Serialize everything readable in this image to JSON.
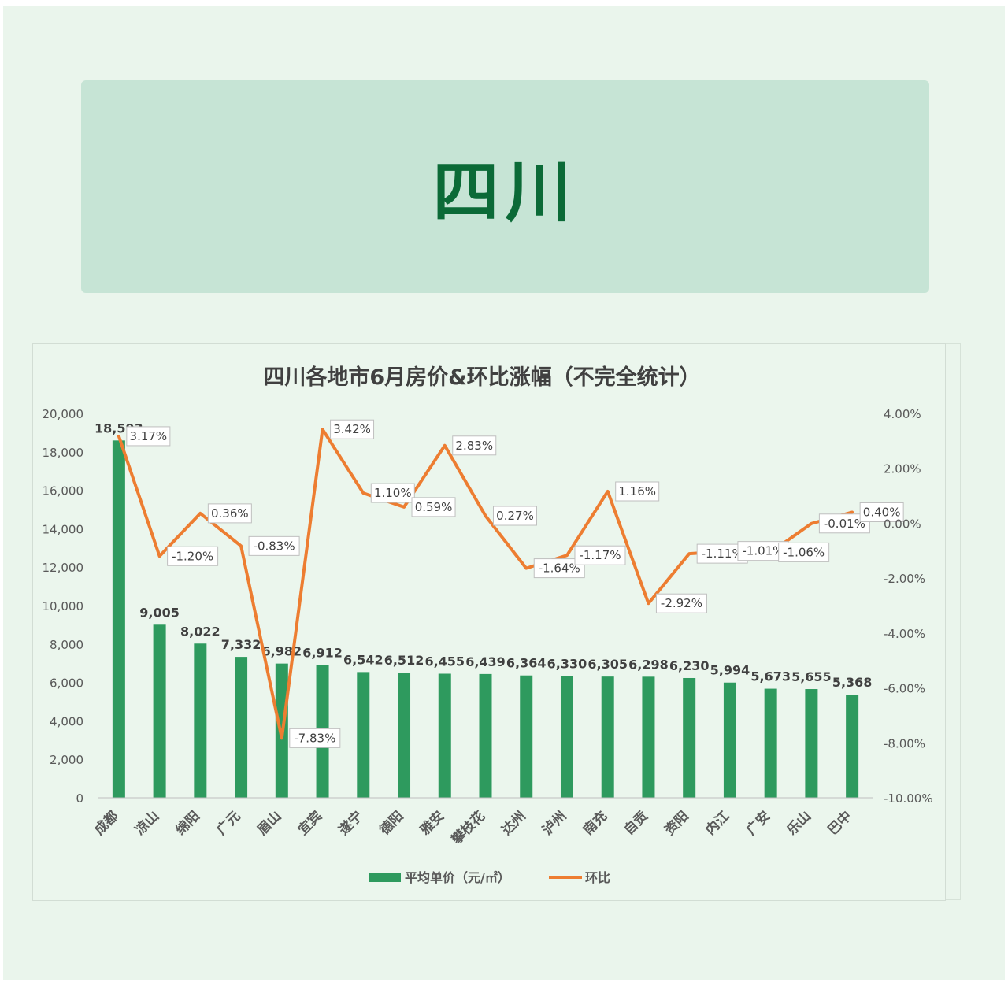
{
  "banner": {
    "title": "四川"
  },
  "chart_data": {
    "type": "bar+line",
    "title": "四川各地市6月房价&环比涨幅（不完全统计）",
    "categories": [
      "成都",
      "凉山",
      "绵阳",
      "广元",
      "眉山",
      "宜宾",
      "遂宁",
      "德阳",
      "雅安",
      "攀枝花",
      "达州",
      "泸州",
      "南充",
      "自贡",
      "资阳",
      "内江",
      "广安",
      "乐山",
      "巴中"
    ],
    "series": [
      {
        "name": "平均单价（元/㎡）",
        "type": "bar",
        "axis": "left",
        "color": "#2e9a5e",
        "values": [
          18593,
          9005,
          8022,
          7332,
          6982,
          6912,
          6542,
          6512,
          6455,
          6439,
          6364,
          6330,
          6305,
          6298,
          6230,
          5994,
          5673,
          5655,
          5368
        ],
        "value_labels": [
          "18,593",
          "9,005",
          "8,022",
          "7,332",
          "6,982",
          "6,912",
          "6,542",
          "6,512",
          "6,455",
          "6,439",
          "6,364",
          "6,330",
          "6,305",
          "6,298",
          "6,230",
          "5,994",
          "5,673",
          "5,655",
          "5,368"
        ]
      },
      {
        "name": "环比",
        "type": "line",
        "axis": "right",
        "color": "#ed7d31",
        "values": [
          3.17,
          -1.2,
          0.36,
          -0.83,
          -7.83,
          3.42,
          1.1,
          0.59,
          2.83,
          0.27,
          -1.64,
          -1.17,
          1.16,
          -2.92,
          -1.11,
          -1.01,
          -1.06,
          -0.01,
          0.4
        ],
        "value_labels": [
          "3.17%",
          "-1.20%",
          "0.36%",
          "-0.83%",
          "-7.83%",
          "3.42%",
          "1.10%",
          "0.59%",
          "2.83%",
          "0.27%",
          "-1.64%",
          "-1.17%",
          "1.16%",
          "-2.92%",
          "-1.11%",
          "-1.01%",
          "-1.06%",
          "-0.01%",
          "0.40%"
        ]
      }
    ],
    "y_left": {
      "range": [
        0,
        20000
      ],
      "ticks": [
        0,
        2000,
        4000,
        6000,
        8000,
        10000,
        12000,
        14000,
        16000,
        18000,
        20000
      ],
      "tick_labels": [
        "0",
        "2,000",
        "4,000",
        "6,000",
        "8,000",
        "10,000",
        "12,000",
        "14,000",
        "16,000",
        "18,000",
        "20,000"
      ]
    },
    "y_right": {
      "range": [
        -10,
        4
      ],
      "ticks": [
        -10,
        -8,
        -6,
        -4,
        -2,
        0,
        2,
        4
      ],
      "tick_labels": [
        "-10.00%",
        "-8.00%",
        "-6.00%",
        "-4.00%",
        "-2.00%",
        "0.00%",
        "2.00%",
        "4.00%"
      ]
    },
    "legend": {
      "position": "bottom",
      "items": [
        "平均单价（元/㎡）",
        "环比"
      ]
    },
    "grid": false
  }
}
